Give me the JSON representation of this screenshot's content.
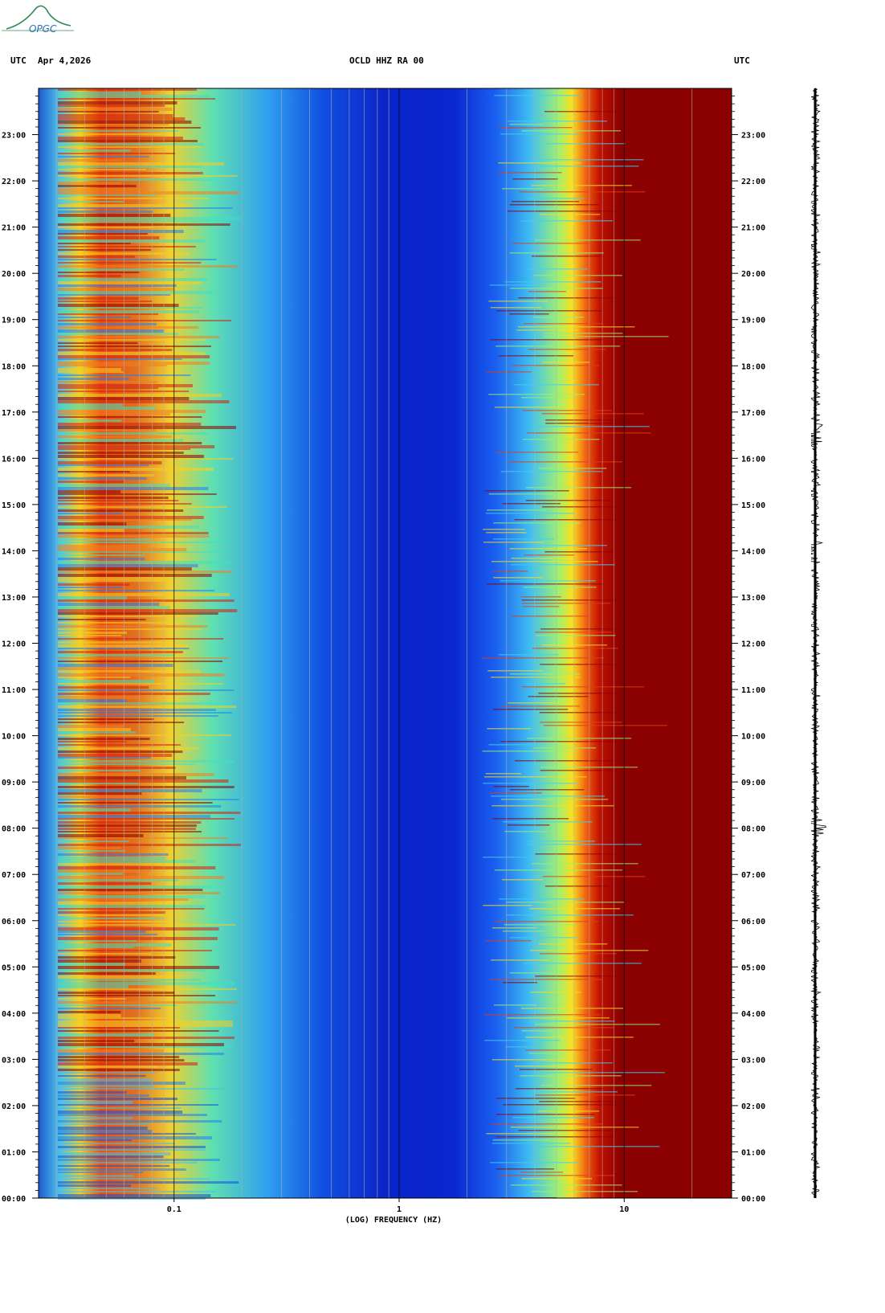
{
  "header": {
    "left_tz": "UTC",
    "date": "Apr 4,2026",
    "station": "OCLD HHZ RA 00",
    "right_tz": "UTC"
  },
  "logo": {
    "text": "OPGC",
    "color": "#2e8b57"
  },
  "chart_data": {
    "type": "heatmap",
    "title": "OCLD HHZ RA 00",
    "xlabel": "(LOG) FREQUENCY (HZ)",
    "x_scale": "log",
    "xlim": [
      0.025,
      30
    ],
    "x_ticks": [
      {
        "value": 0.1,
        "label": "0.1"
      },
      {
        "value": 1,
        "label": "1"
      },
      {
        "value": 10,
        "label": "10"
      }
    ],
    "ylabel": "UTC",
    "ylim": [
      "00:00",
      "24:00"
    ],
    "y_ticks": [
      "00:00",
      "01:00",
      "02:00",
      "03:00",
      "04:00",
      "05:00",
      "06:00",
      "07:00",
      "08:00",
      "09:00",
      "10:00",
      "11:00",
      "12:00",
      "13:00",
      "14:00",
      "15:00",
      "16:00",
      "17:00",
      "18:00",
      "19:00",
      "20:00",
      "21:00",
      "22:00",
      "23:00"
    ],
    "colormap": "jet",
    "features": [
      {
        "description": "high power",
        "freq_range_hz": [
          0.03,
          0.1
        ],
        "level": "red"
      },
      {
        "description": "low power",
        "freq_range_hz": [
          0.3,
          2
        ],
        "level": "blue"
      },
      {
        "description": "high power",
        "freq_range_hz": [
          10,
          30
        ],
        "level": "dark red"
      }
    ]
  },
  "waveform": {
    "component": "HHZ",
    "largest_events_utc": [
      "04:00",
      "08:00",
      "14:00",
      "16:00"
    ]
  }
}
